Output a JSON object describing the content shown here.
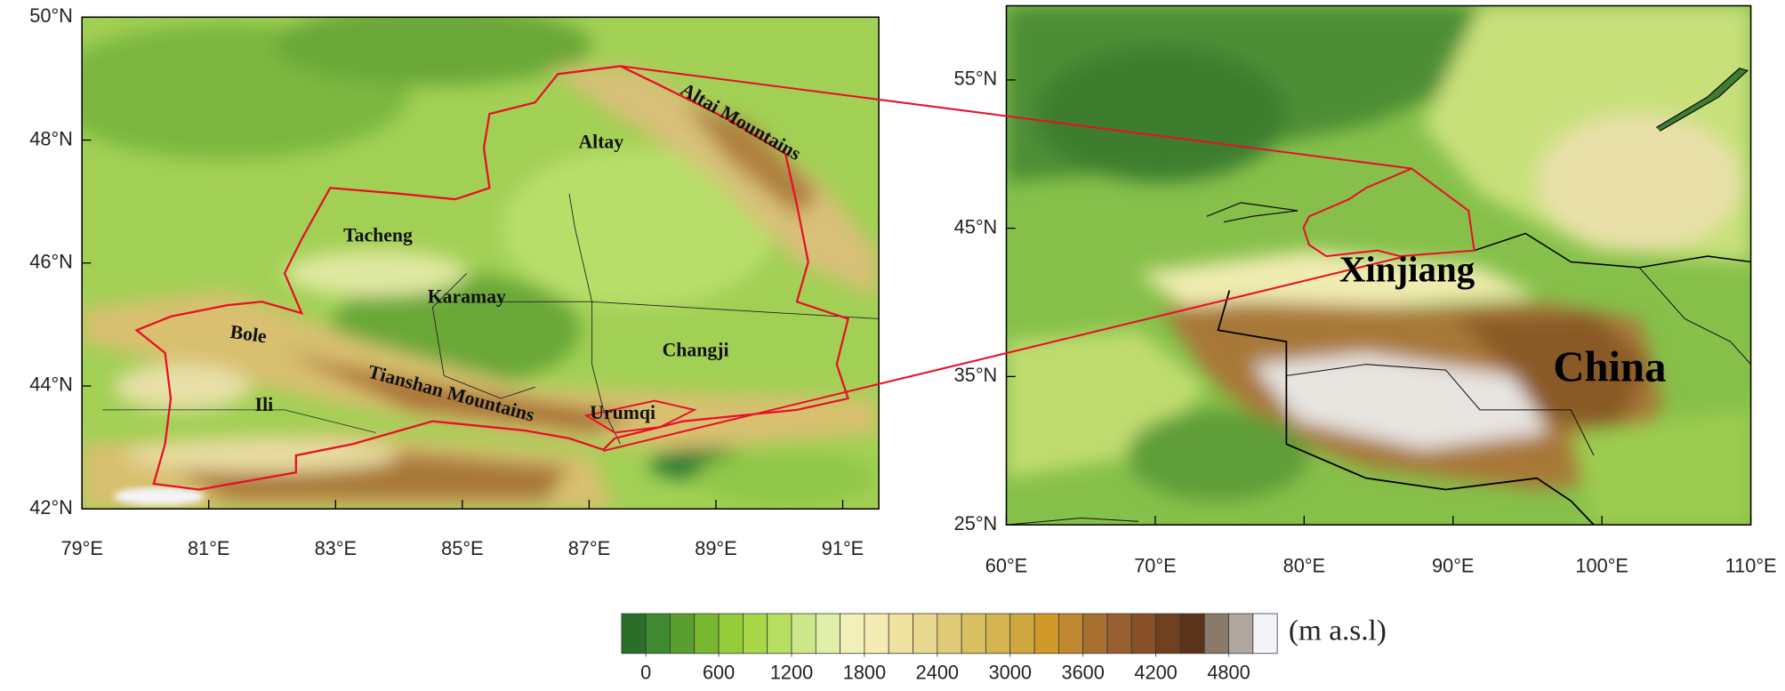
{
  "left_map": {
    "xlim": [
      79,
      91.57
    ],
    "ylim": [
      42,
      50
    ],
    "xticks": [
      {
        "value": 79,
        "label": "79°E"
      },
      {
        "value": 81,
        "label": "81°E"
      },
      {
        "value": 83,
        "label": "83°E"
      },
      {
        "value": 85,
        "label": "85°E"
      },
      {
        "value": 87,
        "label": "87°E"
      },
      {
        "value": 89,
        "label": "89°E"
      },
      {
        "value": 91,
        "label": "91°E"
      }
    ],
    "yticks": [
      {
        "value": 42,
        "label": "42°N"
      },
      {
        "value": 44,
        "label": "44°N"
      },
      {
        "value": 46,
        "label": "46°N"
      },
      {
        "value": 48,
        "label": "48°N"
      },
      {
        "value": 50,
        "label": "50°N"
      }
    ],
    "places": [
      "Altay",
      "Altai Mountains",
      "Tacheng",
      "Karamay",
      "Bole",
      "Changji",
      "Tianshan Mountains",
      "Ili",
      "Urumqi"
    ]
  },
  "right_map": {
    "xlim": [
      60,
      110
    ],
    "ylim": [
      25,
      60
    ],
    "xticks": [
      {
        "value": 60,
        "label": "60°E"
      },
      {
        "value": 70,
        "label": "70°E"
      },
      {
        "value": 80,
        "label": "80°E"
      },
      {
        "value": 90,
        "label": "90°E"
      },
      {
        "value": 100,
        "label": "100°E"
      },
      {
        "value": 110,
        "label": "110°E"
      }
    ],
    "yticks": [
      {
        "value": 25,
        "label": "25°N"
      },
      {
        "value": 35,
        "label": "35°N"
      },
      {
        "value": 45,
        "label": "45°N"
      },
      {
        "value": 55,
        "label": "55°N"
      }
    ],
    "places": [
      "Xinjiang",
      "China"
    ]
  },
  "colorbar": {
    "unit": "(m a.s.l)",
    "lim": [
      -200,
      5200
    ],
    "ticks": [
      0,
      600,
      1200,
      1800,
      2400,
      3000,
      3600,
      4200,
      4800
    ],
    "colors": [
      "#2a6e2a",
      "#3f8a2e",
      "#5a9e30",
      "#78b830",
      "#94cc3a",
      "#a8d848",
      "#b8e060",
      "#cce88a",
      "#e0f0a8",
      "#f0f0b8",
      "#f5ecb5",
      "#efe2a0",
      "#e8d890",
      "#e0cc78",
      "#d8c060",
      "#d4b450",
      "#d0a840",
      "#d09828",
      "#c08830",
      "#a87030",
      "#986030",
      "#885028",
      "#704020",
      "#5a3418",
      "#8a7a6a",
      "#b0a8a0",
      "#f4f4f8"
    ]
  }
}
